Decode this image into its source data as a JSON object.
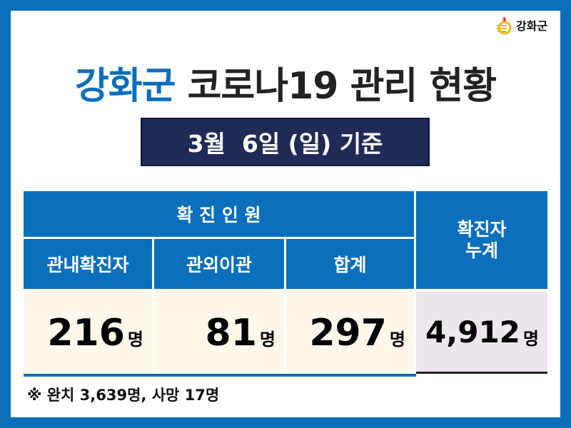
{
  "logo": {
    "text": "강화군"
  },
  "title": {
    "part1": "강화군",
    "part2": "코로나19 관리 현황"
  },
  "date_label": "3월  6일 (일) 기준",
  "table": {
    "group_header": "확 진 인 원",
    "cumulative_header": "확진자\n누계",
    "columns": [
      "관내확진자",
      "관외이관",
      "합계"
    ],
    "values": [
      "216",
      "81",
      "297"
    ],
    "cumulative_value": "4,912",
    "unit": "명"
  },
  "footer": "※ 완치 3,639명, 사망 17명",
  "colors": {
    "brand_blue": "#0a6fbb",
    "navy": "#1f2b55",
    "cream": "#fdf8e9",
    "lavender": "#ede6ee"
  }
}
